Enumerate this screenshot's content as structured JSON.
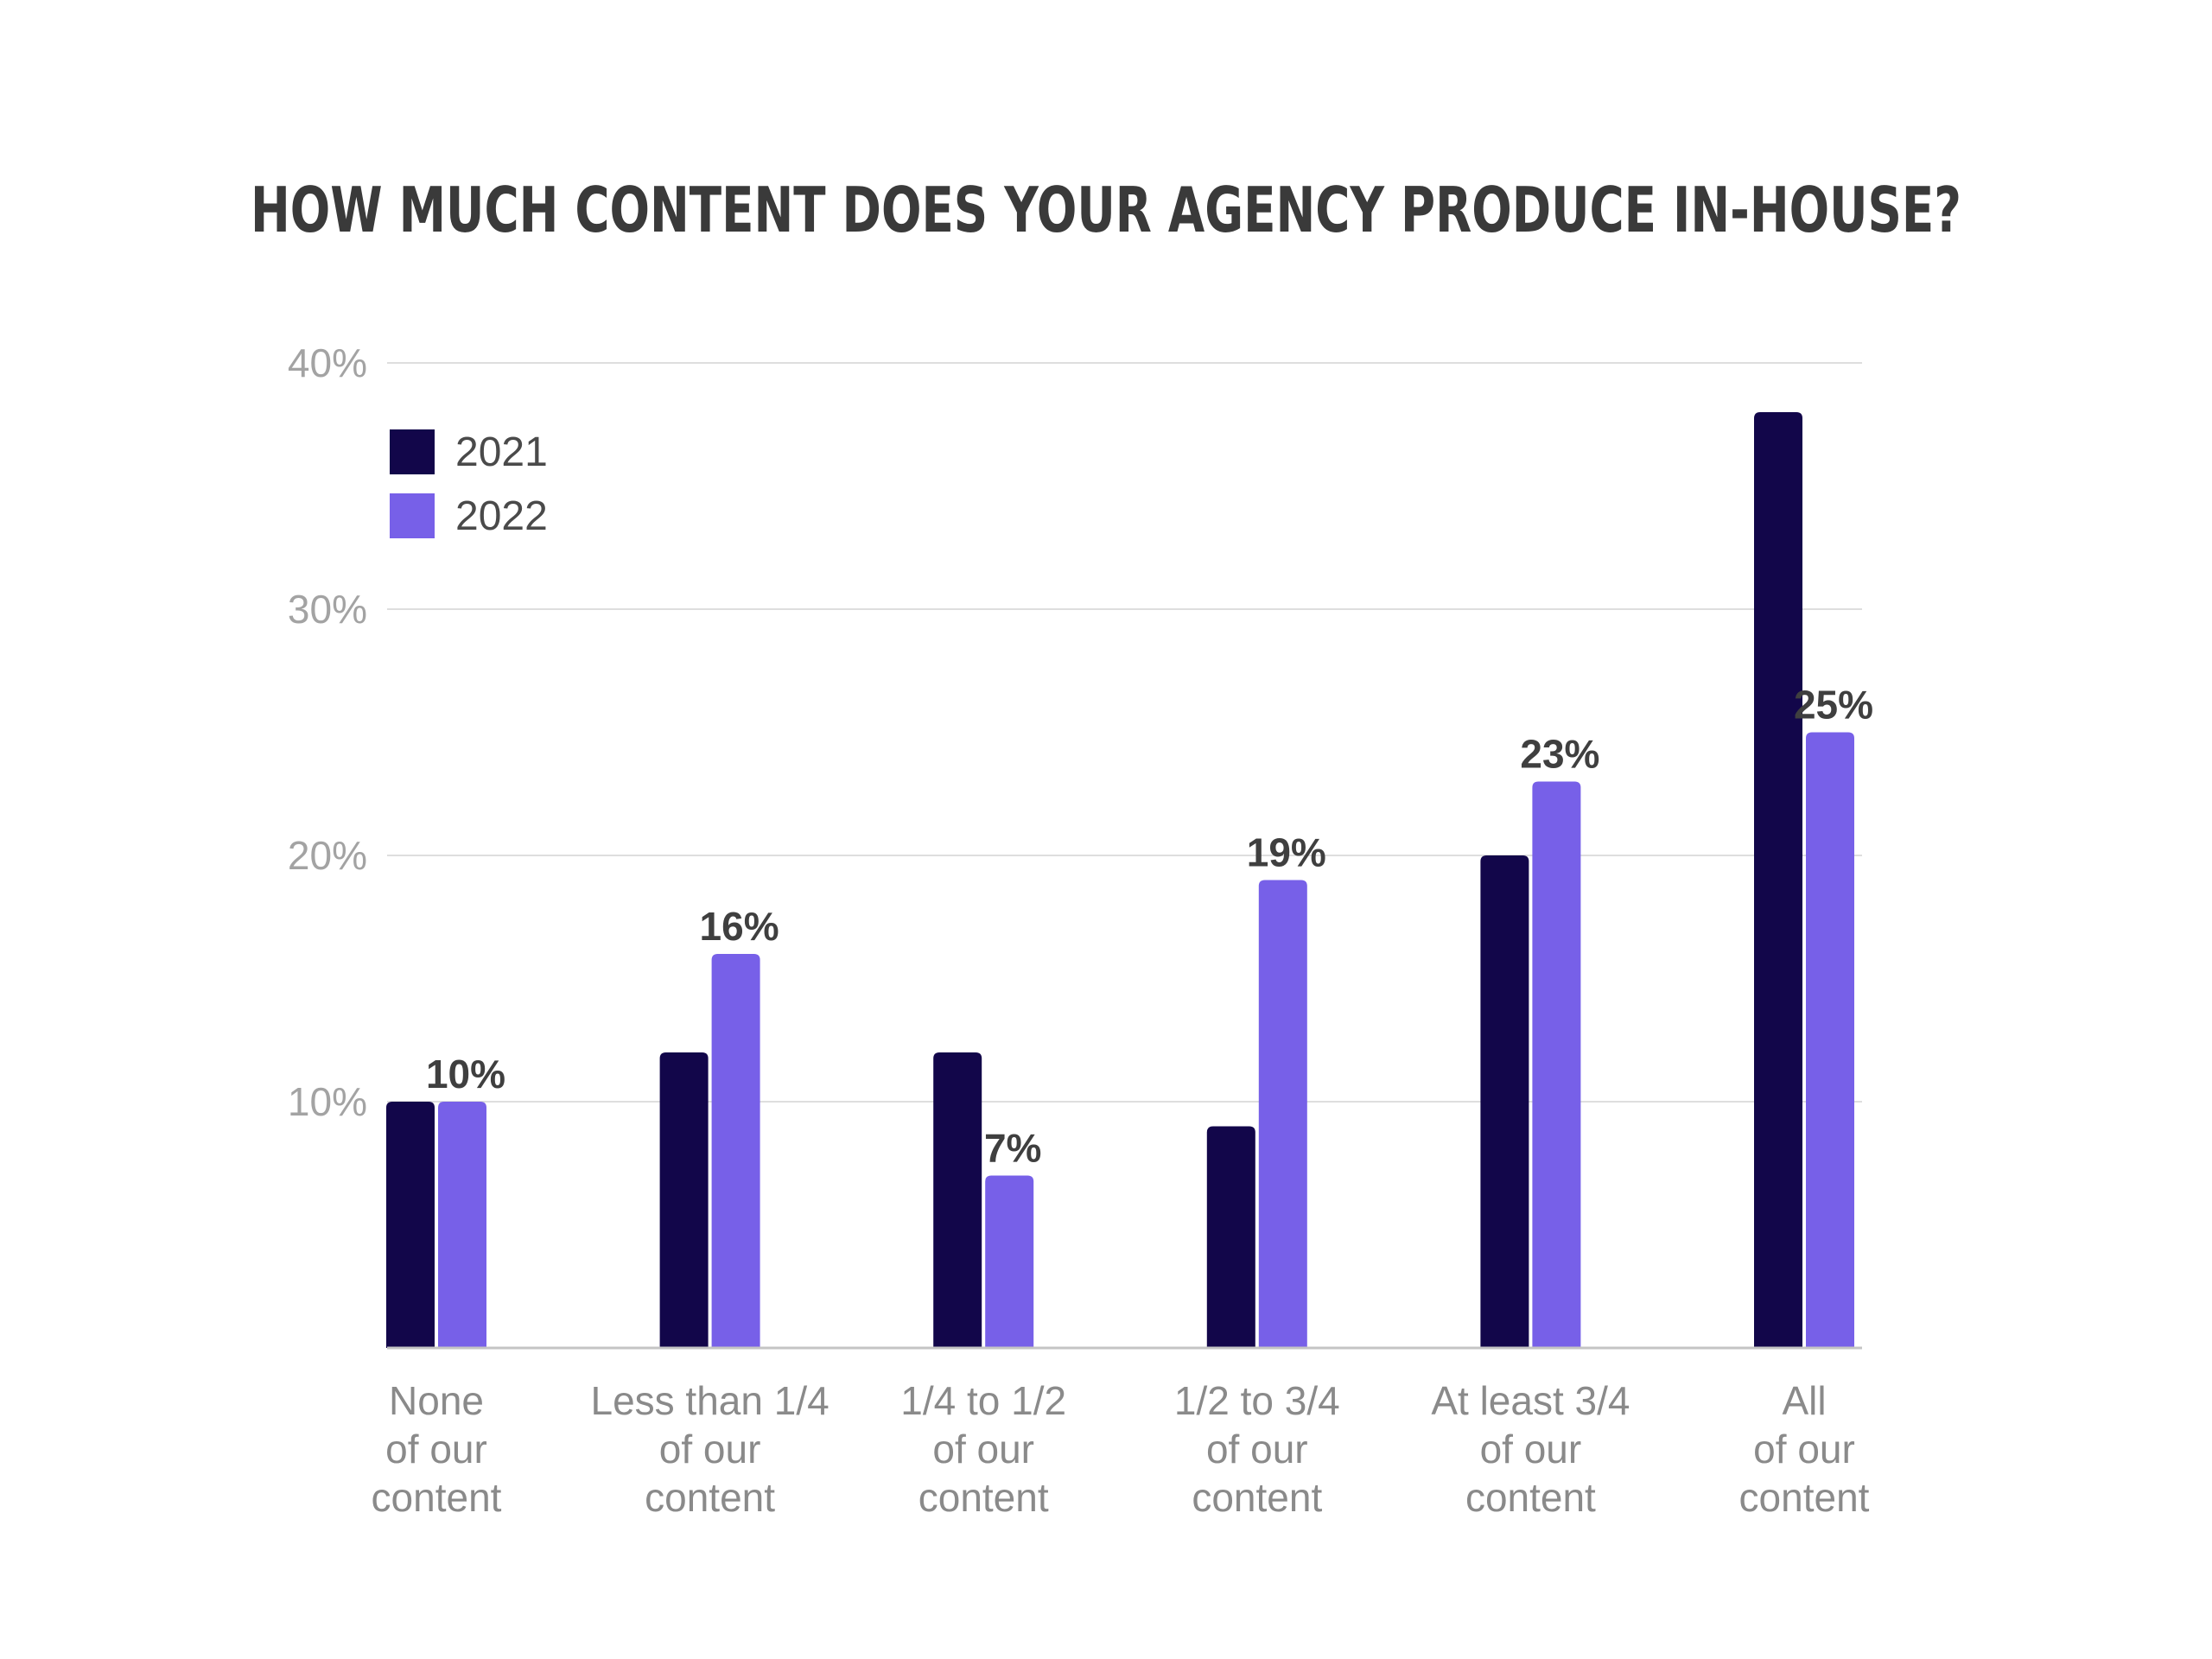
{
  "chart_data": {
    "type": "bar",
    "title": "HOW MUCH CONTENT DOES YOUR AGENCY PRODUCE IN-HOUSE?",
    "categories": [
      [
        "None",
        "of our",
        "content"
      ],
      [
        "Less than 1/4",
        "of our",
        "content"
      ],
      [
        "1/4 to 1/2",
        "of our",
        "content"
      ],
      [
        "1/2 to 3/4",
        "of our",
        "content"
      ],
      [
        "At least 3/4",
        "of our",
        "content"
      ],
      [
        "All",
        "of our",
        "content"
      ]
    ],
    "series": [
      {
        "name": "2021",
        "color": "#12064a",
        "values": [
          10,
          12,
          12,
          9,
          20,
          38
        ]
      },
      {
        "name": "2022",
        "color": "#7760e8",
        "values": [
          10,
          16,
          7,
          19,
          23,
          25
        ],
        "labels": [
          "10%",
          "16%",
          "7%",
          "19%",
          "23%",
          "25%"
        ]
      }
    ],
    "yticks": [
      {
        "value": 10,
        "label": "10%"
      },
      {
        "value": 20,
        "label": "20%"
      },
      {
        "value": 30,
        "label": "30%"
      },
      {
        "value": 40,
        "label": "40%"
      }
    ],
    "ylim": [
      0,
      40
    ],
    "xlabel": "",
    "ylabel": "",
    "grid": true,
    "legend": "top-left"
  }
}
